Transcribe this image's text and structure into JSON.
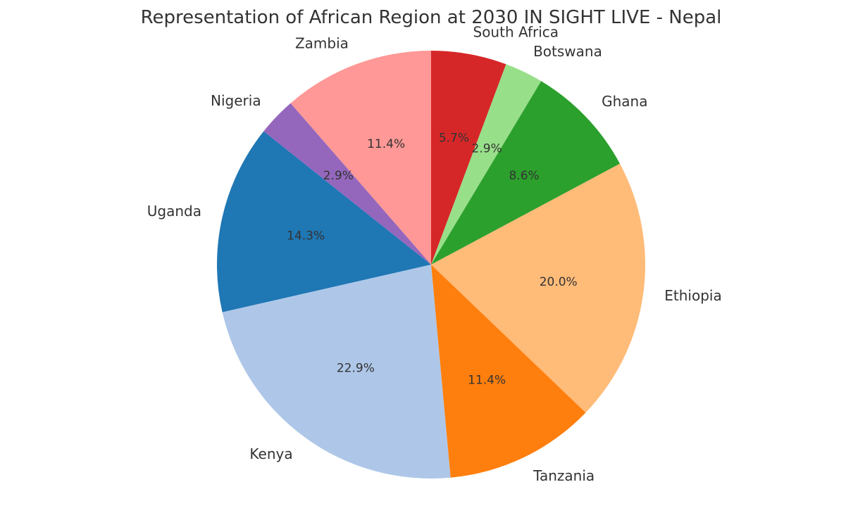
{
  "chart_data": {
    "type": "pie",
    "title": "Representation of African Region at 2030 IN SIGHT LIVE - Nepal",
    "start_angle_deg": 90,
    "direction": "clockwise",
    "slices": [
      {
        "label": "South Africa",
        "value": 5.7,
        "pct_label": "5.7%",
        "color": "#d62728"
      },
      {
        "label": "Botswana",
        "value": 2.9,
        "pct_label": "2.9%",
        "color": "#98df8a"
      },
      {
        "label": "Ghana",
        "value": 8.6,
        "pct_label": "8.6%",
        "color": "#2ca02c"
      },
      {
        "label": "Ethiopia",
        "value": 20.0,
        "pct_label": "20.0%",
        "color": "#ffbb78"
      },
      {
        "label": "Tanzania",
        "value": 11.4,
        "pct_label": "11.4%",
        "color": "#ff7f0e"
      },
      {
        "label": "Kenya",
        "value": 22.9,
        "pct_label": "22.9%",
        "color": "#aec7e8"
      },
      {
        "label": "Uganda",
        "value": 14.3,
        "pct_label": "14.3%",
        "color": "#1f77b4"
      },
      {
        "label": "Nigeria",
        "value": 2.9,
        "pct_label": "2.9%",
        "color": "#9467bd"
      },
      {
        "label": "Zambia",
        "value": 11.4,
        "pct_label": "11.4%",
        "color": "#ff9896"
      }
    ]
  }
}
